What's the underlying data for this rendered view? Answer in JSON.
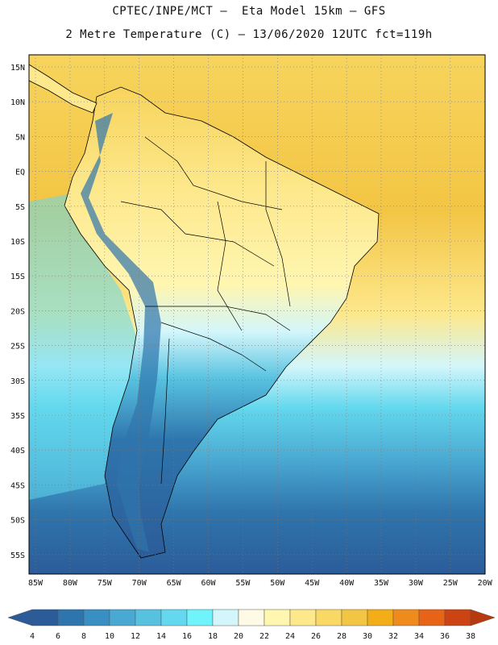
{
  "header": {
    "line1": "CPTEC/INPE/MCT —  Eta Model 15km — GFS",
    "line2": "2 Metre Temperature (C) — 13/06/2020 12UTC fct=119h"
  },
  "map": {
    "lat_labels": [
      "15N",
      "10N",
      "5N",
      "EQ",
      "5S",
      "10S",
      "15S",
      "20S",
      "25S",
      "30S",
      "35S",
      "40S",
      "45S",
      "50S",
      "55S"
    ],
    "lon_labels": [
      "85W",
      "80W",
      "75W",
      "70W",
      "65W",
      "60W",
      "55W",
      "50W",
      "45W",
      "40W",
      "35W",
      "30W",
      "25W",
      "20W"
    ]
  },
  "colorbar": {
    "labels": [
      "4",
      "6",
      "8",
      "10",
      "12",
      "14",
      "16",
      "18",
      "20",
      "22",
      "24",
      "26",
      "28",
      "30",
      "32",
      "34",
      "36",
      "38"
    ],
    "colors": [
      "#2b5c99",
      "#2f75ad",
      "#3a8fc2",
      "#4aa9d2",
      "#57c2e0",
      "#63d8ee",
      "#6ff4fb",
      "#d3f6fb",
      "#fffae6",
      "#fff6b0",
      "#fde88c",
      "#f9d866",
      "#f3c544",
      "#f2ad17",
      "#ef8b1c",
      "#e66318",
      "#cc4414"
    ]
  },
  "legend_colors": {
    "ocean_cold": "#2b5c99",
    "ocean_warm": "#f3c544"
  }
}
